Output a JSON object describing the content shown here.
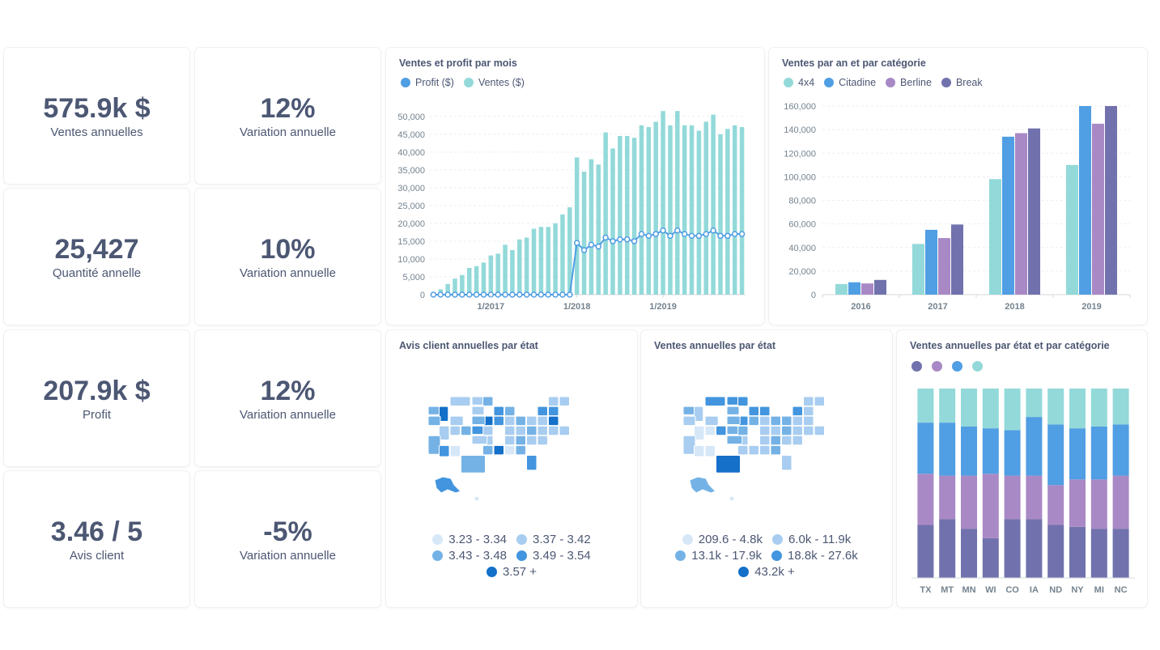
{
  "kpis": [
    {
      "value": "575.9k $",
      "label": "Ventes annuelles"
    },
    {
      "value": "12%",
      "label": "Variation annuelle"
    },
    {
      "value": "25,427",
      "label": "Quantité annelle"
    },
    {
      "value": "10%",
      "label": "Variation annuelle"
    },
    {
      "value": "207.9k $",
      "label": "Profit"
    },
    {
      "value": "12%",
      "label": "Variation annuelle"
    },
    {
      "value": "3.46 / 5",
      "label": "Avis client"
    },
    {
      "value": "-5%",
      "label": "Variation annuelle"
    }
  ],
  "colors": {
    "teal": "#93d9d9",
    "blue": "#509ee3",
    "purple": "#a989c5",
    "indigo": "#7172ad",
    "text": "#4c5773",
    "map_dark": "#1470c9"
  },
  "chart_data": [
    {
      "type": "bar",
      "title": "Ventes et profit par mois",
      "legend": [
        "Profit ($)",
        "Ventes ($)"
      ],
      "x_tick_labels": [
        "1/2017",
        "1/2018",
        "1/2019"
      ],
      "y_tick_labels": [
        "0",
        "5,000",
        "10,000",
        "15,000",
        "20,000",
        "25,000",
        "30,000",
        "35,000",
        "40,000",
        "45,000",
        "50,000"
      ],
      "ylim": [
        0,
        52000
      ],
      "series": [
        {
          "name": "Ventes ($)",
          "kind": "bar",
          "values": [
            500,
            1500,
            3000,
            4500,
            5500,
            7500,
            8000,
            9000,
            11000,
            11500,
            14000,
            12500,
            15500,
            16000,
            18500,
            19000,
            19000,
            20000,
            22500,
            24500,
            38500,
            34500,
            38000,
            36500,
            45500,
            41000,
            44500,
            44500,
            44000,
            47500,
            47000,
            48500,
            51500,
            47500,
            51500,
            47500,
            47500,
            46000,
            48500,
            50500,
            45000,
            46500,
            47500,
            47000
          ]
        },
        {
          "name": "Profit ($)",
          "kind": "line",
          "values": [
            0,
            0,
            0,
            0,
            0,
            0,
            0,
            0,
            0,
            0,
            0,
            0,
            0,
            0,
            0,
            0,
            0,
            0,
            0,
            0,
            14500,
            12500,
            14000,
            13500,
            16000,
            15000,
            15500,
            15500,
            15000,
            17000,
            16500,
            17000,
            18000,
            16500,
            18000,
            17000,
            16500,
            16500,
            17000,
            18000,
            16500,
            16500,
            17000,
            17000
          ]
        }
      ]
    },
    {
      "type": "bar",
      "title": "Ventes par an et par catégorie",
      "categories": [
        "2016",
        "2017",
        "2018",
        "2019"
      ],
      "ylim": [
        0,
        160000
      ],
      "y_tick_labels": [
        "0",
        "20,000",
        "40,000",
        "60,000",
        "80,000",
        "100,000",
        "120,000",
        "140,000",
        "160,000"
      ],
      "series": [
        {
          "name": "4x4",
          "values": [
            9000,
            43000,
            98000,
            110000
          ]
        },
        {
          "name": "Citadine",
          "values": [
            10500,
            55000,
            134000,
            160000
          ]
        },
        {
          "name": "Berline",
          "values": [
            9500,
            48000,
            137000,
            145000
          ]
        },
        {
          "name": "Break",
          "values": [
            12500,
            59500,
            141000,
            160000
          ]
        }
      ]
    },
    {
      "type": "bar",
      "title": "Ventes annuelles par état et par catégorie",
      "stacked_percent": true,
      "categories": [
        "TX",
        "MT",
        "MN",
        "WI",
        "CO",
        "IA",
        "ND",
        "NY",
        "MI",
        "NC"
      ],
      "series": [
        {
          "name": "",
          "values": [
            0.28,
            0.31,
            0.26,
            0.21,
            0.31,
            0.31,
            0.28,
            0.27,
            0.26,
            0.26
          ]
        },
        {
          "name": "",
          "values": [
            0.27,
            0.23,
            0.28,
            0.34,
            0.23,
            0.23,
            0.21,
            0.25,
            0.26,
            0.28
          ]
        },
        {
          "name": "",
          "values": [
            0.27,
            0.28,
            0.26,
            0.24,
            0.24,
            0.31,
            0.32,
            0.27,
            0.28,
            0.27
          ]
        },
        {
          "name": "",
          "values": [
            0.18,
            0.18,
            0.2,
            0.21,
            0.22,
            0.15,
            0.19,
            0.21,
            0.2,
            0.19
          ]
        }
      ]
    }
  ],
  "maps": [
    {
      "title": "Avis client annuelles par état",
      "legend": [
        "3.23 - 3.34",
        "3.37 - 3.42",
        "3.43 - 3.48",
        "3.49 - 3.54",
        "3.57 +"
      ]
    },
    {
      "title": "Ventes annuelles par état",
      "legend": [
        "209.6 - 4.8k",
        "6.0k - 11.9k",
        "13.1k - 17.9k",
        "18.8k - 27.6k",
        "43.2k +"
      ]
    }
  ]
}
